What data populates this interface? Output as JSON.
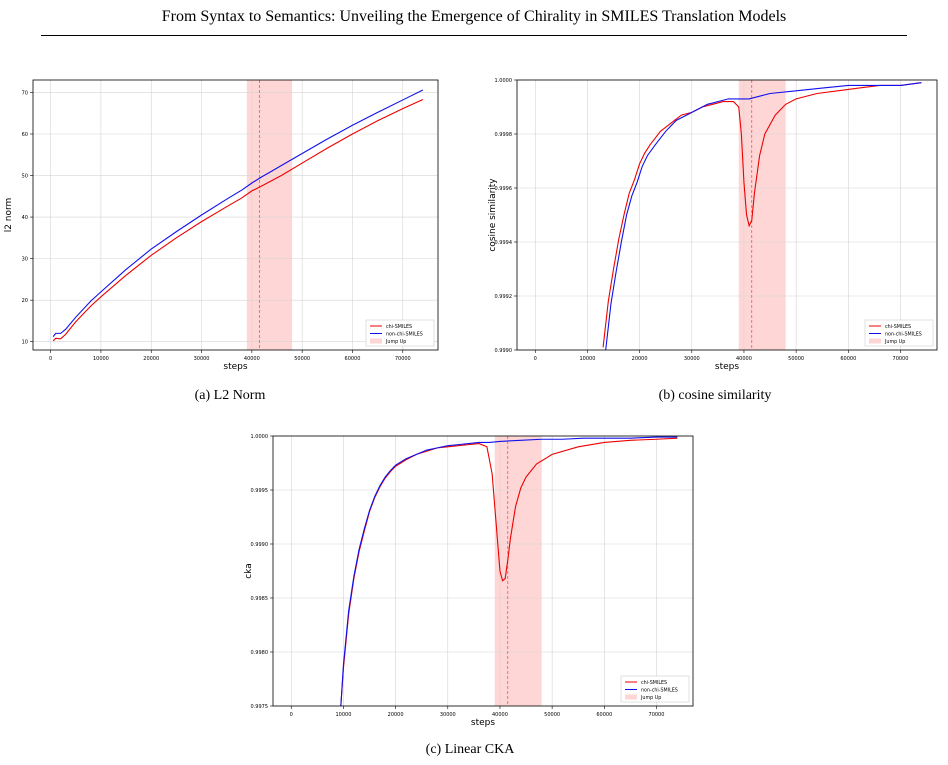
{
  "header": {
    "title": "From Syntax to Semantics: Unveiling the Emergence of Chirality in SMILES Translation Models"
  },
  "figures": {
    "a": {
      "caption": "(a) L2 Norm"
    },
    "b": {
      "caption": "(b) cosine similarity"
    },
    "c": {
      "caption": "(c) Linear CKA"
    }
  },
  "colors": {
    "chi": "#ee0000",
    "nonchi": "#1010ee",
    "jump_fill": "#ffd6d6",
    "grid": "#d4d4d4"
  },
  "chart_data": [
    {
      "type": "line",
      "xlabel": "steps",
      "ylabel": "l2 norm",
      "xlim": [
        -3500,
        77000
      ],
      "ylim": [
        8,
        73
      ],
      "xticks": [
        0,
        10000,
        20000,
        30000,
        40000,
        50000,
        60000,
        70000
      ],
      "xtick_labels": [
        "0",
        "10000",
        "20000",
        "30000",
        "40000",
        "50000",
        "60000",
        "70000"
      ],
      "yticks": [
        10,
        20,
        30,
        40,
        50,
        60,
        70
      ],
      "ytick_labels": [
        "10",
        "20",
        "30",
        "40",
        "50",
        "60",
        "70"
      ],
      "grid": true,
      "legend_position": "lower-right",
      "jump_band": [
        39000,
        48000
      ],
      "jump_line": 41500,
      "series": [
        {
          "name": "chi-SMILES",
          "x": [
            500,
            1000,
            2000,
            3000,
            5000,
            8000,
            10000,
            15000,
            20000,
            25000,
            30000,
            35000,
            38000,
            40000,
            42000,
            44000,
            46000,
            50000,
            55000,
            60000,
            65000,
            70000,
            74000
          ],
          "y": [
            10.2,
            10.8,
            10.7,
            11.8,
            14.8,
            18.6,
            20.8,
            26.0,
            30.8,
            35.0,
            38.9,
            42.5,
            44.6,
            46.3,
            47.5,
            48.8,
            50.1,
            53.0,
            56.6,
            60.0,
            63.2,
            66.1,
            68.3
          ]
        },
        {
          "name": "non-chi-SMILES",
          "x": [
            500,
            1000,
            2000,
            3000,
            5000,
            8000,
            10000,
            15000,
            20000,
            25000,
            30000,
            35000,
            38000,
            40000,
            42000,
            44000,
            46000,
            50000,
            55000,
            60000,
            65000,
            70000,
            74000
          ],
          "y": [
            11.2,
            12.0,
            12.0,
            13.0,
            15.9,
            19.8,
            22.0,
            27.4,
            32.3,
            36.5,
            40.5,
            44.3,
            46.5,
            48.2,
            49.7,
            51.1,
            52.5,
            55.3,
            58.8,
            62.1,
            65.2,
            68.2,
            70.6
          ]
        },
        {
          "name": "Jump Up"
        }
      ]
    },
    {
      "type": "line",
      "xlabel": "steps",
      "ylabel": "cosine similarity",
      "xlim": [
        -3500,
        77000
      ],
      "ylim": [
        0.999,
        1.0
      ],
      "xticks": [
        0,
        10000,
        20000,
        30000,
        40000,
        50000,
        60000,
        70000
      ],
      "xtick_labels": [
        "0",
        "10000",
        "20000",
        "30000",
        "40000",
        "50000",
        "60000",
        "70000"
      ],
      "yticks": [
        0.999,
        0.9992,
        0.9994,
        0.9996,
        0.9998,
        1.0
      ],
      "ytick_labels": [
        "0.9990",
        "0.9992",
        "0.9994",
        "0.9996",
        "0.9998",
        "1.0000"
      ],
      "grid": true,
      "legend_position": "lower-right",
      "jump_band": [
        39000,
        48000
      ],
      "jump_line": 41500,
      "series": [
        {
          "name": "chi-SMILES",
          "x": [
            13000,
            14000,
            15000,
            16000,
            17000,
            18000,
            19000,
            20000,
            21000,
            22000,
            24000,
            26000,
            28000,
            30000,
            32000,
            34000,
            36000,
            38000,
            39000,
            39500,
            40000,
            40500,
            41000,
            41500,
            42000,
            43000,
            44000,
            46000,
            48000,
            50000,
            54000,
            58000,
            62000,
            66000,
            70000,
            74000
          ],
          "y": [
            0.99901,
            0.99918,
            0.9993,
            0.99941,
            0.9995,
            0.99958,
            0.99963,
            0.99969,
            0.99973,
            0.99976,
            0.99981,
            0.99984,
            0.99987,
            0.99988,
            0.9999,
            0.99991,
            0.99992,
            0.99992,
            0.9999,
            0.9998,
            0.99962,
            0.9995,
            0.99946,
            0.99948,
            0.99958,
            0.99972,
            0.9998,
            0.99987,
            0.99991,
            0.99993,
            0.99995,
            0.99996,
            0.99997,
            0.99998,
            0.99998,
            0.99999
          ]
        },
        {
          "name": "non-chi-SMILES",
          "x": [
            13500,
            14500,
            15500,
            16500,
            17500,
            18500,
            19500,
            20500,
            21500,
            23000,
            25000,
            27000,
            29000,
            31000,
            33000,
            35000,
            37000,
            39000,
            41000,
            43000,
            45000,
            50000,
            55000,
            60000,
            65000,
            70000,
            74000
          ],
          "y": [
            0.999,
            0.99917,
            0.99929,
            0.9994,
            0.9995,
            0.99957,
            0.99962,
            0.99968,
            0.99972,
            0.99976,
            0.99981,
            0.99985,
            0.99987,
            0.99989,
            0.99991,
            0.99992,
            0.99993,
            0.99993,
            0.99993,
            0.99994,
            0.99995,
            0.99996,
            0.99997,
            0.99998,
            0.99998,
            0.99998,
            0.99999
          ]
        },
        {
          "name": "Jump Up"
        }
      ]
    },
    {
      "type": "line",
      "xlabel": "steps",
      "ylabel": "cka",
      "xlim": [
        -3500,
        77000
      ],
      "ylim": [
        0.9975,
        1.0
      ],
      "xticks": [
        0,
        10000,
        20000,
        30000,
        40000,
        50000,
        60000,
        70000
      ],
      "xtick_labels": [
        "0",
        "10000",
        "20000",
        "30000",
        "40000",
        "50000",
        "60000",
        "70000"
      ],
      "yticks": [
        0.9975,
        0.998,
        0.9985,
        0.999,
        0.9995,
        1.0
      ],
      "ytick_labels": [
        "0.9975",
        "0.9980",
        "0.9985",
        "0.9990",
        "0.9995",
        "1.0000"
      ],
      "grid": true,
      "legend_position": "lower-right",
      "jump_band": [
        39000,
        48000
      ],
      "jump_line": 41500,
      "series": [
        {
          "name": "chi-SMILES",
          "x": [
            9500,
            10000,
            11000,
            12000,
            13000,
            14000,
            15000,
            16000,
            17000,
            18000,
            19000,
            20000,
            22000,
            24000,
            26000,
            28000,
            30000,
            32000,
            34000,
            36000,
            37500,
            38500,
            39500,
            40000,
            40500,
            41000,
            41500,
            42000,
            43000,
            44000,
            45000,
            47000,
            50000,
            55000,
            60000,
            65000,
            70000,
            74000
          ],
          "y": [
            0.9975,
            0.99785,
            0.99835,
            0.99868,
            0.99893,
            0.99912,
            0.9993,
            0.99943,
            0.99953,
            0.99961,
            0.99967,
            0.99972,
            0.99978,
            0.99983,
            0.99986,
            0.99989,
            0.9999,
            0.99991,
            0.99992,
            0.99993,
            0.9999,
            0.99965,
            0.99905,
            0.99875,
            0.99866,
            0.99868,
            0.99885,
            0.99905,
            0.99935,
            0.99952,
            0.99962,
            0.99974,
            0.99983,
            0.9999,
            0.99994,
            0.99996,
            0.99997,
            0.99998
          ]
        },
        {
          "name": "non-chi-SMILES",
          "x": [
            9500,
            10000,
            11000,
            12000,
            13000,
            14000,
            15000,
            16000,
            17000,
            18000,
            19000,
            20000,
            22000,
            24000,
            26000,
            28000,
            30000,
            32000,
            34000,
            36000,
            38000,
            40000,
            44000,
            48000,
            52000,
            56000,
            60000,
            65000,
            70000,
            74000
          ],
          "y": [
            0.9975,
            0.99788,
            0.99838,
            0.9987,
            0.99895,
            0.99914,
            0.99931,
            0.99944,
            0.99954,
            0.99962,
            0.99968,
            0.99973,
            0.99979,
            0.99983,
            0.99987,
            0.99989,
            0.99991,
            0.99992,
            0.99993,
            0.99994,
            0.99994,
            0.99995,
            0.99996,
            0.99997,
            0.99997,
            0.99998,
            0.99998,
            0.99998,
            0.99999,
            0.99999
          ]
        },
        {
          "name": "Jump Up"
        }
      ]
    }
  ]
}
